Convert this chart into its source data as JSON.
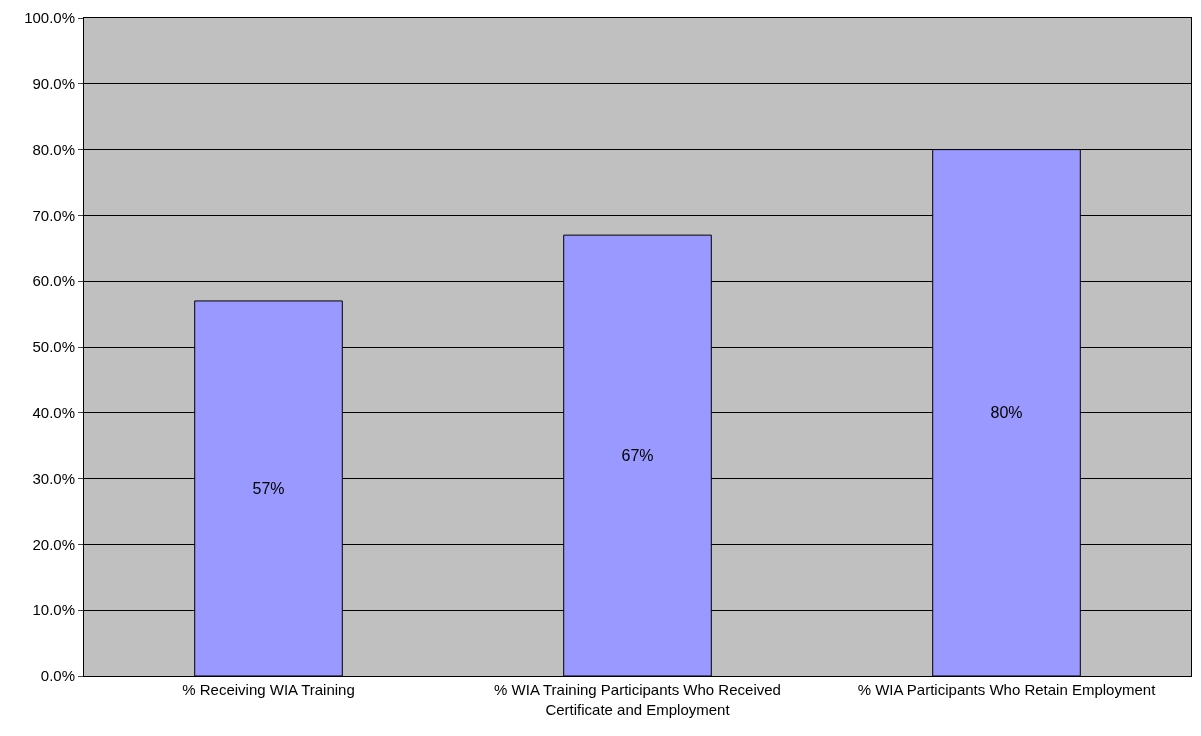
{
  "chart_data": {
    "type": "bar",
    "categories": [
      "% Receiving WIA Training",
      "% WIA Training Participants Who Received\nCertificate and Employment",
      "% WIA Participants Who Retain Employment"
    ],
    "values": [
      57,
      67,
      80
    ],
    "value_labels": [
      "57%",
      "67%",
      "80%"
    ],
    "color": "#9999ff",
    "ylim": [
      0,
      100
    ],
    "yticks": [
      {
        "value": 0,
        "label": "0.0%"
      },
      {
        "value": 10,
        "label": "10.0%"
      },
      {
        "value": 20,
        "label": "20.0%"
      },
      {
        "value": 30,
        "label": "30.0%"
      },
      {
        "value": 40,
        "label": "40.0%"
      },
      {
        "value": 50,
        "label": "50.0%"
      },
      {
        "value": 60,
        "label": "60.0%"
      },
      {
        "value": 70,
        "label": "70.0%"
      },
      {
        "value": 80,
        "label": "80.0%"
      },
      {
        "value": 90,
        "label": "90.0%"
      },
      {
        "value": 100,
        "label": "100.0%"
      }
    ],
    "grid": "y",
    "legend": false
  }
}
